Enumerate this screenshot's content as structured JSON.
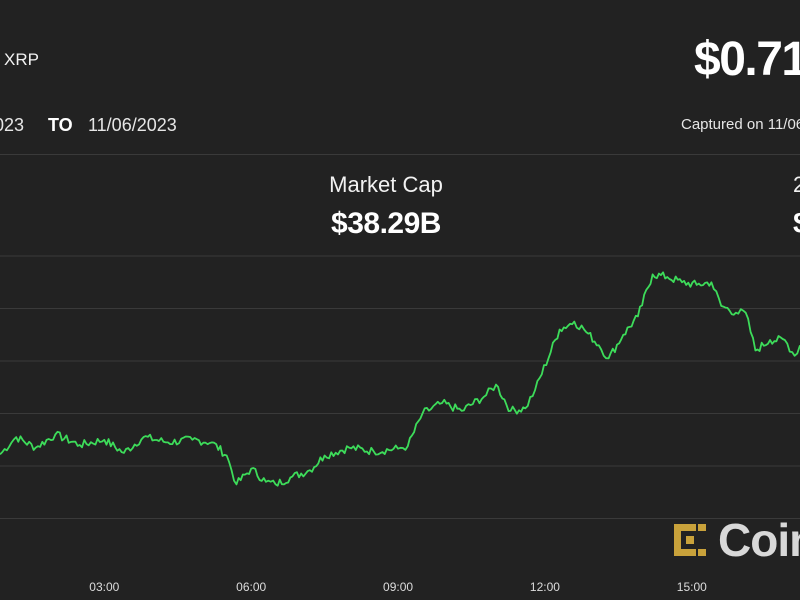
{
  "header": {
    "asset": "XRP",
    "price": "$0.71",
    "date_from": "023",
    "to_label": "TO",
    "date_to": "11/06/2023",
    "captured": "Captured on 11/06"
  },
  "stats": {
    "market_cap_label": "Market Cap",
    "market_cap_value": "$38.29B",
    "cut_label": "2",
    "cut_value": "$"
  },
  "watermark": {
    "text": "Coin",
    "icon": "coindesk-logo-icon"
  },
  "colors": {
    "background": "#222222",
    "line": "#3ddc5a",
    "grid": "#3a3a3a",
    "logo": "#c9a23b"
  },
  "chart_data": {
    "type": "line",
    "title": "",
    "xlabel": "",
    "ylabel": "",
    "x_ticks": [
      "03:00",
      "06:00",
      "09:00",
      "12:00",
      "15:00"
    ],
    "x_tick_hours": [
      3,
      6,
      9,
      12,
      15
    ],
    "x_range_hours": [
      0.87,
      17.21
    ],
    "ylim": [
      0,
      6
    ],
    "y_gridlines": [
      1,
      2,
      3,
      4,
      5,
      6
    ],
    "grid": true,
    "series": [
      {
        "values": [
          [
            0.87,
            2.22
          ],
          [
            1.2,
            2.55
          ],
          [
            1.6,
            2.35
          ],
          [
            2.0,
            2.6
          ],
          [
            2.5,
            2.4
          ],
          [
            3.0,
            2.5
          ],
          [
            3.4,
            2.25
          ],
          [
            3.8,
            2.55
          ],
          [
            4.3,
            2.45
          ],
          [
            4.8,
            2.5
          ],
          [
            5.2,
            2.45
          ],
          [
            5.5,
            2.2
          ],
          [
            5.7,
            1.65
          ],
          [
            6.0,
            1.95
          ],
          [
            6.3,
            1.7
          ],
          [
            6.5,
            1.65
          ],
          [
            6.8,
            1.78
          ],
          [
            7.2,
            1.92
          ],
          [
            7.5,
            2.2
          ],
          [
            8.0,
            2.35
          ],
          [
            8.5,
            2.28
          ],
          [
            9.0,
            2.33
          ],
          [
            9.2,
            2.38
          ],
          [
            9.5,
            3.0
          ],
          [
            9.9,
            3.2
          ],
          [
            10.3,
            3.05
          ],
          [
            10.8,
            3.35
          ],
          [
            11.0,
            3.55
          ],
          [
            11.3,
            3.05
          ],
          [
            11.6,
            3.1
          ],
          [
            11.8,
            3.45
          ],
          [
            12.3,
            4.6
          ],
          [
            12.6,
            4.75
          ],
          [
            12.8,
            4.6
          ],
          [
            13.1,
            4.3
          ],
          [
            13.3,
            4.05
          ],
          [
            13.6,
            4.5
          ],
          [
            13.9,
            4.85
          ],
          [
            14.2,
            5.65
          ],
          [
            14.5,
            5.6
          ],
          [
            14.8,
            5.5
          ],
          [
            15.1,
            5.45
          ],
          [
            15.4,
            5.5
          ],
          [
            15.6,
            5.05
          ],
          [
            15.9,
            4.92
          ],
          [
            16.1,
            4.92
          ],
          [
            16.3,
            4.2
          ],
          [
            16.6,
            4.4
          ],
          [
            16.9,
            4.4
          ],
          [
            17.1,
            4.1
          ],
          [
            17.21,
            4.3
          ]
        ]
      }
    ]
  }
}
